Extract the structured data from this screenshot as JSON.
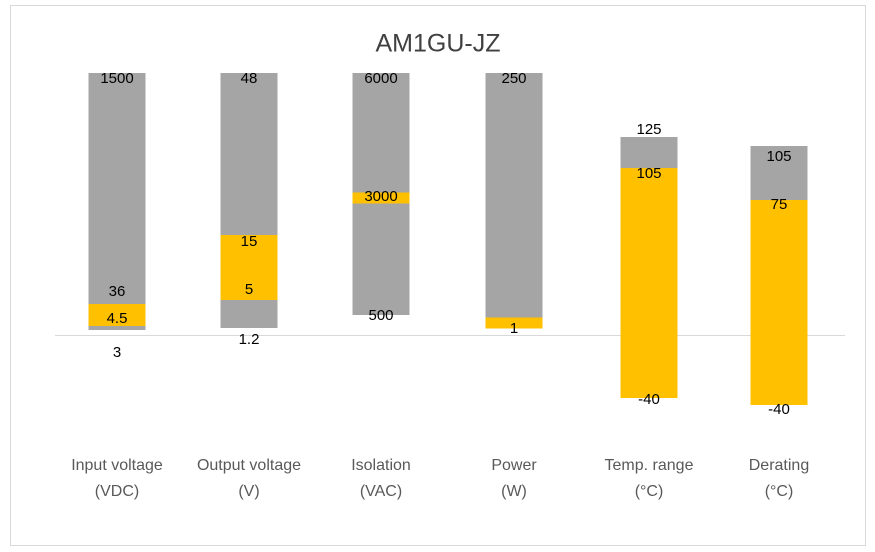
{
  "chart_data": {
    "type": "floating-range",
    "title": "AM1GU-JZ",
    "columns": [
      {
        "label": [
          "Input voltage",
          "(VDC)"
        ],
        "points": [
          {
            "value": 3
          },
          {
            "value": 4.5,
            "highlight": true
          },
          {
            "value": 36,
            "highlight": true
          },
          {
            "value": 1500
          }
        ]
      },
      {
        "label": [
          "Output voltage",
          "(V)"
        ],
        "points": [
          {
            "value": 1.2
          },
          {
            "value": 5,
            "highlight": true
          },
          {
            "value": 15,
            "highlight": true
          },
          {
            "value": 48
          }
        ]
      },
      {
        "label": [
          "Isolation",
          "(VAC)"
        ],
        "points": [
          {
            "value": 500
          },
          {
            "value": 3000,
            "highlight": true
          },
          {
            "value": 6000
          }
        ]
      },
      {
        "label": [
          "Power",
          "(W)"
        ],
        "points": [
          {
            "value": 1,
            "highlight": true
          },
          {
            "value": 250
          }
        ]
      },
      {
        "label": [
          "Temp. range",
          "(°C)"
        ],
        "points": [
          {
            "value": -40,
            "highlight": true
          },
          {
            "value": 105,
            "highlight": true
          },
          {
            "value": 125
          }
        ]
      },
      {
        "label": [
          "Derating",
          "(°C)"
        ],
        "points": [
          {
            "value": -40,
            "highlight": true
          },
          {
            "value": 75,
            "highlight": true
          },
          {
            "value": 105
          }
        ]
      }
    ],
    "range_color": "#a5a5a5",
    "highlight_color": "#ffc000"
  }
}
